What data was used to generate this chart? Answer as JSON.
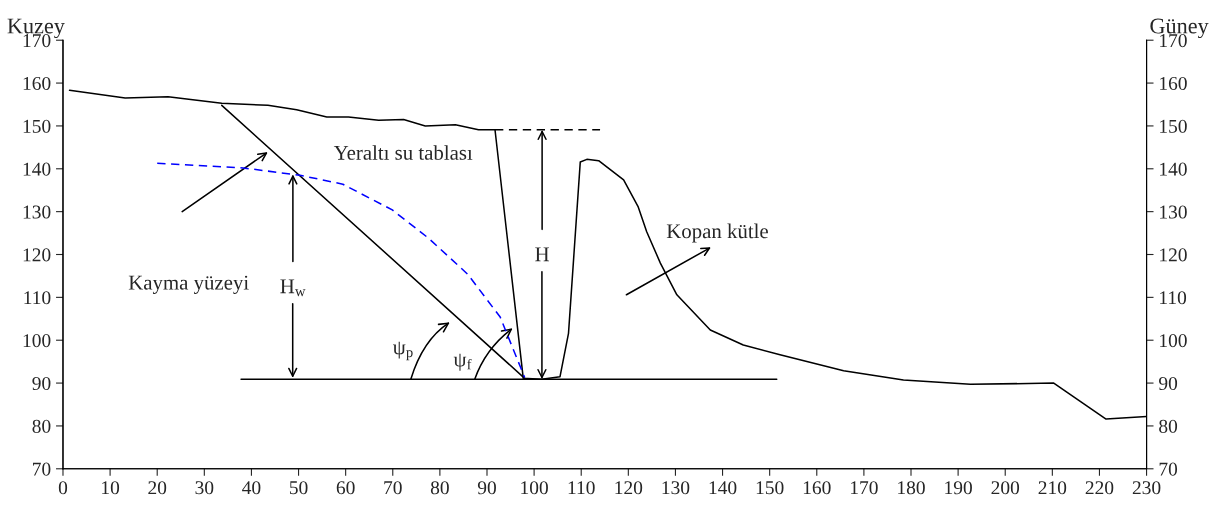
{
  "chart_data": {
    "type": "line",
    "ylabel": "Kuzey",
    "y2label": "Güney",
    "xlim": [
      0,
      230
    ],
    "xticks": [
      0,
      10,
      20,
      30,
      40,
      50,
      60,
      70,
      80,
      90,
      100,
      110,
      120,
      130,
      140,
      150,
      160,
      170,
      180,
      190,
      200,
      210,
      220,
      230
    ],
    "ylim": [
      70,
      170
    ],
    "yticks": [
      70,
      80,
      90,
      100,
      110,
      120,
      130,
      140,
      150,
      160,
      170
    ],
    "y2lim": [
      70,
      170
    ],
    "y2ticks": [
      70,
      80,
      90,
      100,
      110,
      120,
      130,
      140,
      150,
      160,
      170
    ],
    "grid": false,
    "legend": false,
    "series": [
      {
        "color": "#000000",
        "line_style": "solid",
        "x": [
          1.4,
          13.2,
          22.3,
          33.7,
          43.5,
          49.6,
          56,
          60.6,
          67,
          72.3,
          76.9,
          83.3,
          88.2,
          91.7,
          97.7,
          101.6,
          105.5,
          107.3,
          109.8,
          111.2,
          113.7,
          119,
          122.1,
          123.9,
          126.8,
          130.3,
          137.4,
          144.4,
          152.2,
          165.7,
          178.4,
          192.6,
          210.3,
          221.4,
          230
        ],
        "values": [
          158.3,
          156.5,
          156.8,
          155.3,
          154.8,
          153.8,
          152.1,
          152.1,
          151.3,
          151.5,
          150,
          150.3,
          149.1,
          149.1,
          91.1,
          90.9,
          91.5,
          101.6,
          141.6,
          142.2,
          141.9,
          137.4,
          131.1,
          125.3,
          118,
          110.6,
          102.4,
          98.9,
          96.6,
          92.9,
          90.7,
          89.7,
          90,
          81.6,
          82.2
        ]
      },
      {
        "color": "#000000",
        "line_style": "solid",
        "x": [
          33.7,
          98
        ],
        "values": [
          154.8,
          91.1
        ]
      },
      {
        "color": "#000000",
        "line_style": "solid",
        "x": [
          37.8,
          151.5
        ],
        "values": [
          90.9,
          90.9
        ]
      },
      {
        "color": "#000000",
        "line_style": "dashed",
        "x": [
          91.7,
          114
        ],
        "values": [
          149.1,
          149.1
        ]
      },
      {
        "color": "#0000ff",
        "line_style": "dashed",
        "x": [
          20,
          38.2,
          50.3,
          59.4,
          69.9,
          77.6,
          85.9,
          92.8,
          98
        ],
        "values": [
          141.3,
          140.2,
          138.5,
          136.4,
          130.4,
          123.8,
          115.4,
          105.4,
          91.3
        ]
      }
    ],
    "annotations": [
      "Yeraltı su tablası",
      "Kayma yüzeyi",
      "Kopan kütle",
      {
        "text": "H$_{w}$",
        "x": 48.8,
        "y": 138.7
      },
      {
        "text": "H",
        "x": 101.7,
        "y": 149.1
      },
      "ψ$_{p}$",
      "ψ$_{f}$"
    ]
  }
}
